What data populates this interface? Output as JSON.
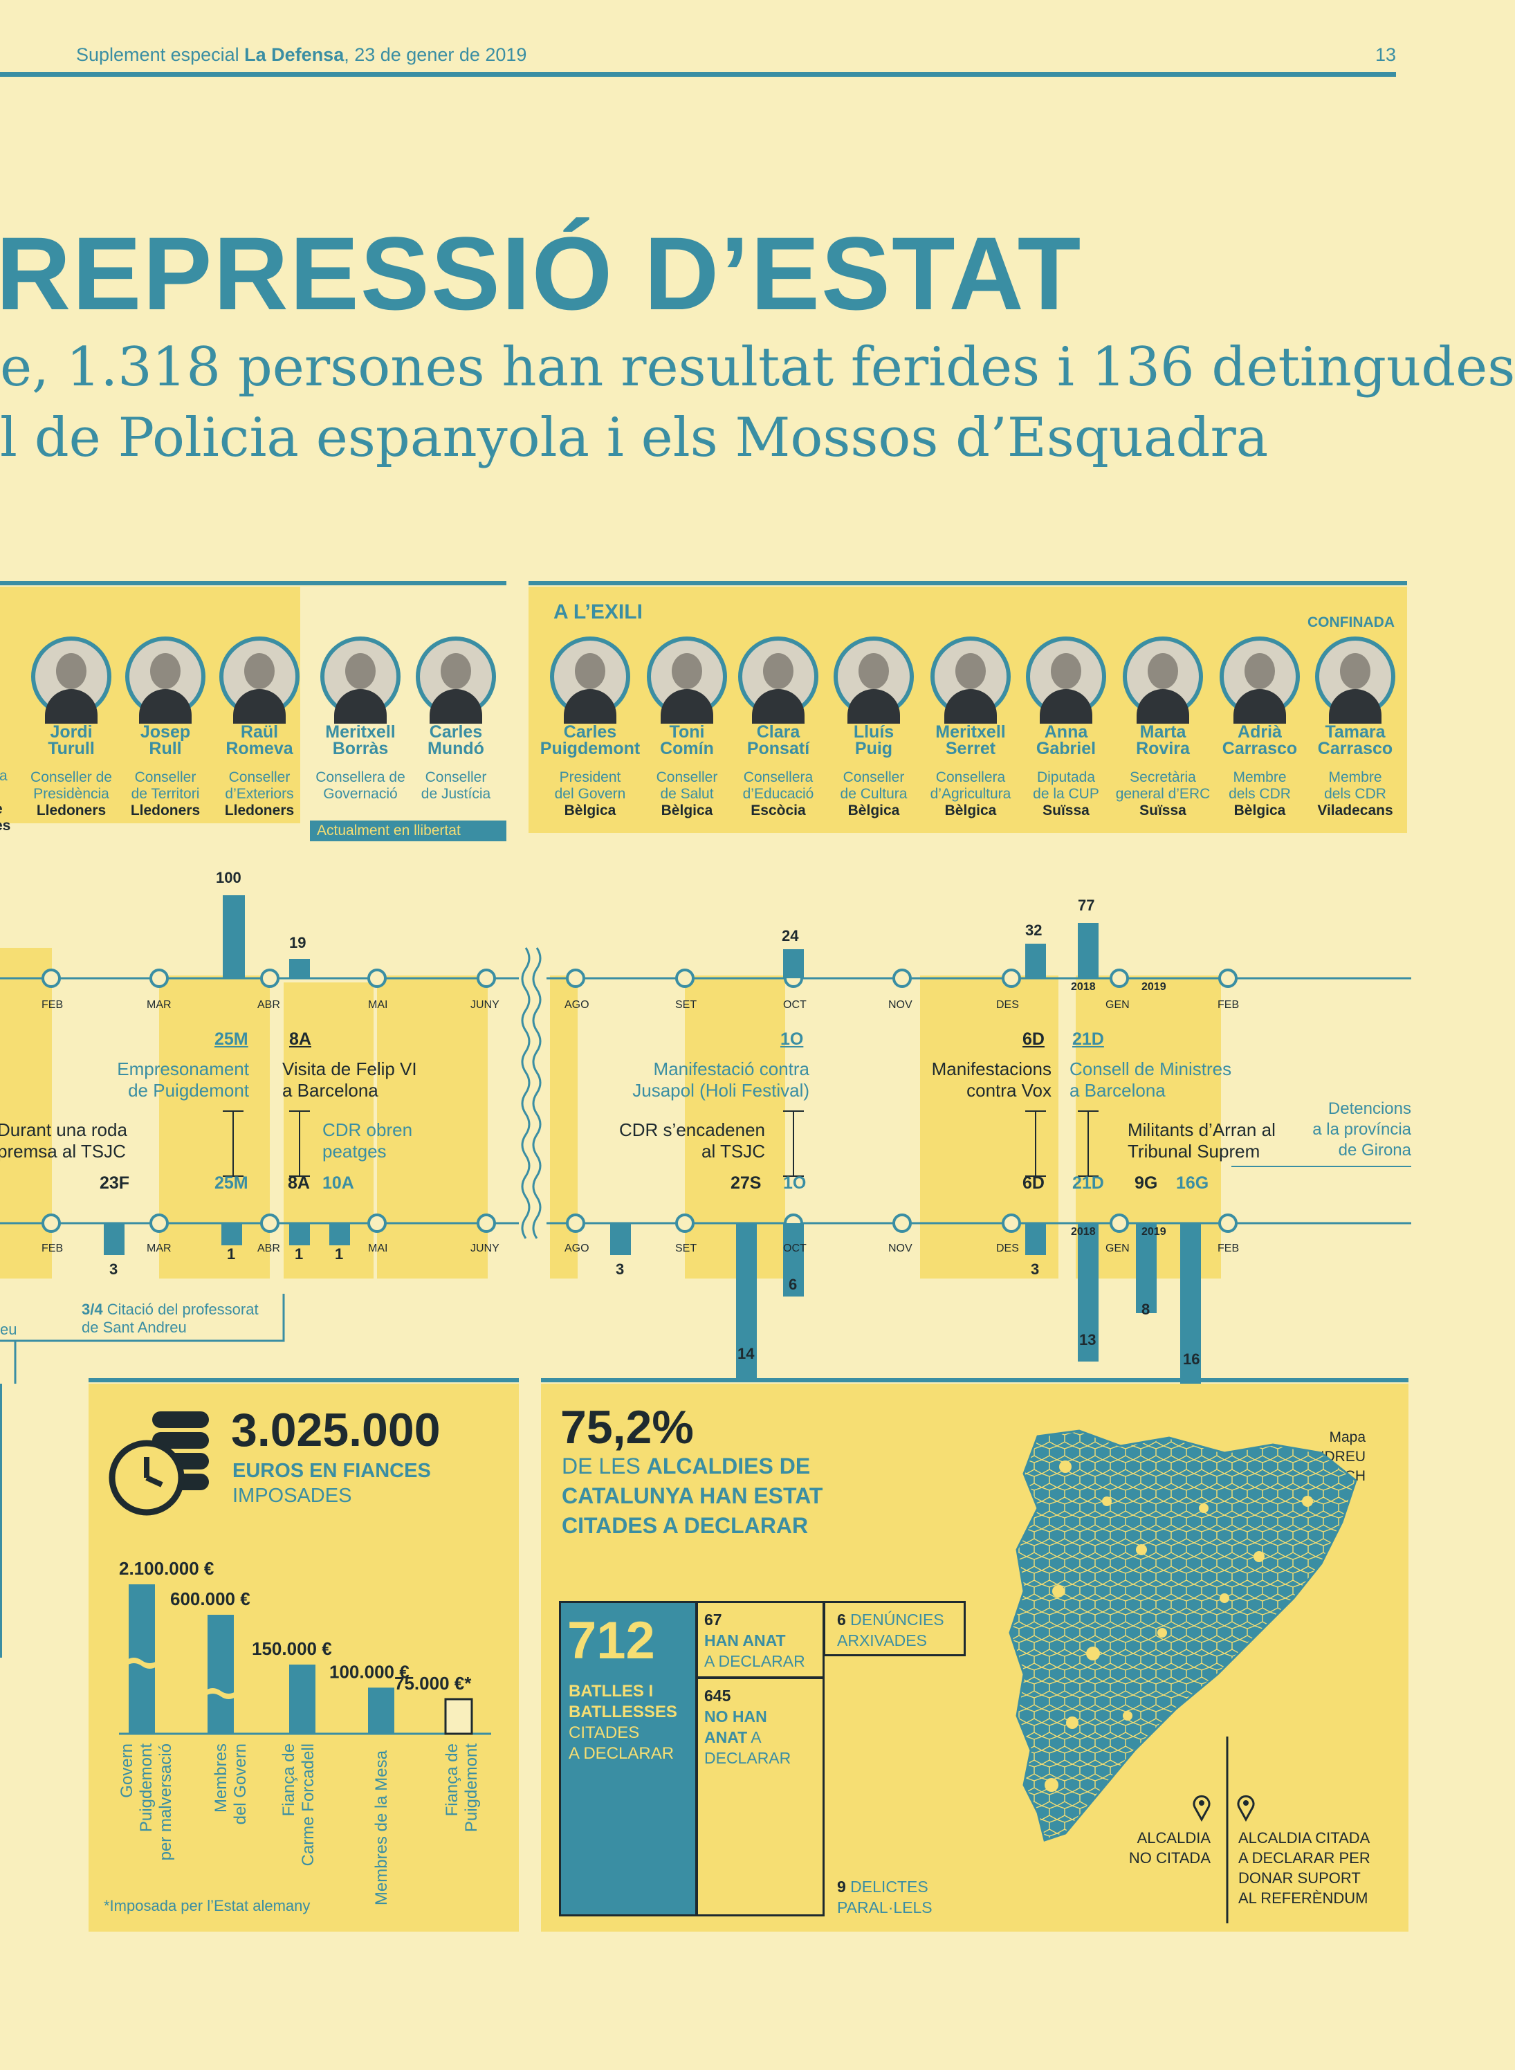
{
  "header": {
    "prefix": "Suplement especial ",
    "paper": "La Defensa",
    "date": ", 23 de gener de 2019",
    "page": "13"
  },
  "title": "REPRESSIÓ D’ESTAT",
  "subtitle": {
    "line1": "e, 1.318 persones han resultat ferides i 136 detingudes",
    "line2": "l de Policia espanyola i els Mossos d’Esquadra"
  },
  "prison": {
    "people": [
      {
        "name": "Jordi",
        "surname": "Turull",
        "role1": "Conseller de",
        "role2": "Presidència",
        "place": "Lledoners"
      },
      {
        "name": "Josep",
        "surname": "Rull",
        "role1": "Conseller",
        "role2": "de Territori",
        "place": "Lledoners"
      },
      {
        "name": "Raül",
        "surname": "Romeva",
        "role1": "Conseller",
        "role2": "d’Exteriors",
        "place": "Lledoners"
      },
      {
        "name": "Meritxell",
        "surname": "Borràs",
        "role1": "Consellera de",
        "role2": "Governació",
        "place": ""
      },
      {
        "name": "Carles",
        "surname": "Mundó",
        "role1": "Conseller",
        "role2": "de Justícia",
        "place": ""
      }
    ],
    "edge_frag": {
      "a": "s",
      "b": "ra",
      "c": "ll",
      "d": "e",
      "e": "es"
    },
    "free_note": "Actualment en llibertat"
  },
  "exile": {
    "label": "A L’EXILI",
    "confined_label": "CONFINADA",
    "people": [
      {
        "name": "Carles",
        "surname": "Puigdemont",
        "role1": "President",
        "role2": "del Govern",
        "place": "Bèlgica"
      },
      {
        "name": "Toni",
        "surname": "Comín",
        "role1": "Conseller",
        "role2": "de Salut",
        "place": "Bèlgica"
      },
      {
        "name": "Clara",
        "surname": "Ponsatí",
        "role1": "Consellera",
        "role2": "d’Educació",
        "place": "Escòcia"
      },
      {
        "name": "Lluís",
        "surname": "Puig",
        "role1": "Conseller",
        "role2": "de Cultura",
        "place": "Bèlgica"
      },
      {
        "name": "Meritxell",
        "surname": "Serret",
        "role1": "Consellera",
        "role2": "d’Agricultura",
        "place": "Bèlgica"
      },
      {
        "name": "Anna",
        "surname": "Gabriel",
        "role1": "Diputada",
        "role2": "de la CUP",
        "place": "Suïssa"
      },
      {
        "name": "Marta",
        "surname": "Rovira",
        "role1": "Secretària",
        "role2": "general d’ERC",
        "place": "Suïssa"
      },
      {
        "name": "Adrià",
        "surname": "Carrasco",
        "role1": "Membre",
        "role2": "dels CDR",
        "place": "Bèlgica"
      },
      {
        "name": "Tamara",
        "surname": "Carrasco",
        "role1": "Membre",
        "role2": "dels CDR",
        "place": "Viladecans"
      }
    ]
  },
  "timeline": {
    "months_a": [
      "FEB",
      "MAR",
      "ABR",
      "MAI",
      "JUNY"
    ],
    "months_b": [
      "AGO",
      "SET",
      "OCT",
      "NOV",
      "DES",
      "GEN",
      "FEB"
    ],
    "years": [
      "2018",
      "2019"
    ],
    "top_values": [
      "100",
      "19",
      "24",
      "32",
      "77"
    ],
    "bottom_values": [
      "3",
      "1",
      "1",
      "1",
      "3",
      "14",
      "6",
      "3",
      "13",
      "8",
      "16"
    ],
    "top_codes": [
      "25M",
      "8A",
      "1O",
      "6D",
      "21D"
    ],
    "bottom_codes": [
      "23F",
      "25M",
      "8A",
      "10A",
      "27S",
      "1O",
      "6D",
      "21D",
      "9G",
      "16G"
    ],
    "events": {
      "e1": "Empresonament",
      "e1b": "de Puigdemont",
      "e2": "Visita de Felip VI",
      "e2b": "a Barcelona",
      "e3": "Manifestació contra",
      "e3b": "Jusapol (Holi Festival)",
      "e4": "Manifestacions",
      "e4b": "contra Vox",
      "e5": "Consell de Ministres",
      "e5b": "a Barcelona",
      "e6": "Durant una roda",
      "e6b": "premsa al TSJC",
      "e7": "CDR obren",
      "e7b": "peatges",
      "e8": "CDR s’encadenen",
      "e8b": "al TSJC",
      "e9": "Militants d’Arran al",
      "e9b": "Tribunal Suprem",
      "e10": "Detencions",
      "e10b": "a la província",
      "e10c": "de Girona",
      "e11a": "3/4",
      "e11b": " Citació del professorat",
      "e11c": "de Sant Andreu",
      "e11d": "eu"
    }
  },
  "fines": {
    "total": "3.025.000",
    "unit1": "EUROS EN FIANCES",
    "unit2": "IMPOSADES",
    "chart_data": {
      "type": "bar",
      "title": "3.025.000 euros en fiances imposades",
      "categories": [
        "Govern Puigdemont per malversació",
        "Membres del Govern",
        "Fiança de Carme Forcadell",
        "Membres de la Mesa",
        "Fiança de Puigdemont"
      ],
      "values": [
        2100000,
        600000,
        150000,
        100000,
        75000
      ],
      "labels": [
        "2.100.000 €",
        "600.000 €",
        "150.000 €",
        "100.000 €",
        "75.000 €*"
      ]
    },
    "cat_lines": [
      [
        "Govern",
        "Puigdemont",
        "per malversació"
      ],
      [
        "Membres",
        "del Govern"
      ],
      [
        "Fiança de",
        "Carme Forcadell"
      ],
      [
        "Membres de la Mesa"
      ],
      [
        "Fiança de",
        "Puigdemont"
      ]
    ],
    "note": "*Imposada per l’Estat alemany"
  },
  "mayors": {
    "pct": "75,2%",
    "l1a": "DE LES ",
    "l1b": "ALCALDIES DE",
    "l2": "CATALUNYA HAN ESTAT",
    "l3": "CITADES A DECLARAR",
    "total": "712",
    "t1": "BATLLES I",
    "t2": "BATLLESSES",
    "t3": "CITADES",
    "t4": "A DECLARAR",
    "went_n": "67",
    "went1": "HAN ANAT",
    "went2": "A DECLARAR",
    "notwent_n": "645",
    "nw1": "NO HAN",
    "nw2": "ANAT",
    "nw2b": " A",
    "nw3": "DECLARAR",
    "arch_n": "6",
    "arch1": " DENÚNCIES",
    "arch2": "ARXIVADES",
    "del_n": "9",
    "del1": " DELICTES",
    "del2": "PARAL·LELS",
    "map_credit1": "Mapa",
    "map_credit2": "| ANDREU BLANCH",
    "legend_a1": "ALCALDIA",
    "legend_a2": "NO CITADA",
    "legend_b1": "ALCALDIA CITADA",
    "legend_b2": "A DECLARAR PER",
    "legend_b3": "DONAR SUPORT",
    "legend_b4": "AL REFERÈNDUM",
    "colors": {
      "cited": "#3a8ea3",
      "not_cited": "#f6de73"
    }
  }
}
